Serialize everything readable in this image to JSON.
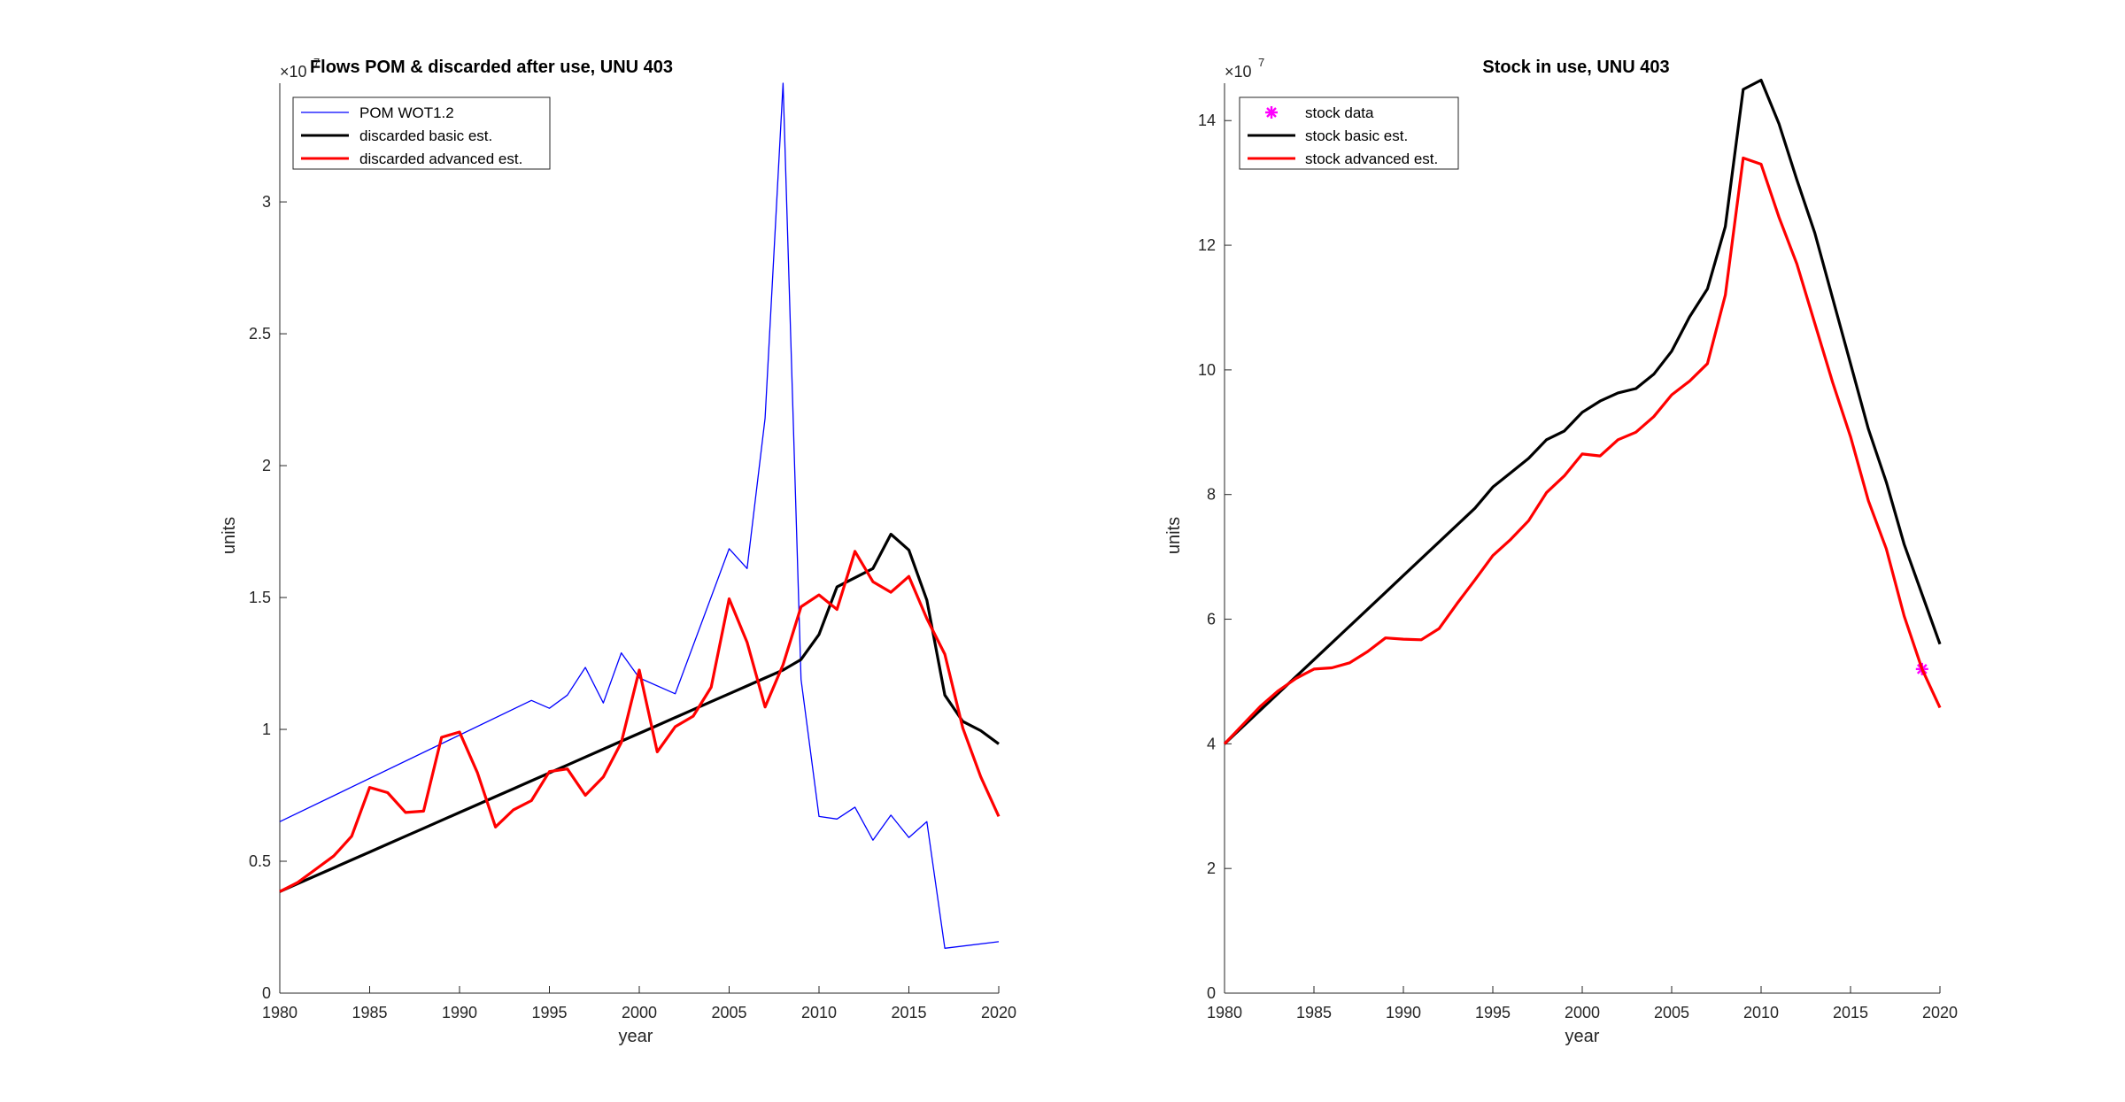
{
  "chart_data": [
    {
      "type": "line",
      "title": "Flows POM & discarded after use, UNU 403",
      "xlabel": "year",
      "ylabel": "units",
      "exponent_label": "×10",
      "exponent_power": "7",
      "xlim": [
        1980,
        2020
      ],
      "ylim": [
        0,
        34.5
      ],
      "xticks": [
        "1980",
        "1985",
        "1990",
        "1995",
        "2000",
        "2005",
        "2010",
        "2015",
        "2020"
      ],
      "yticks": [
        "0",
        "0.5",
        "1",
        "1.5",
        "2",
        "2.5",
        "3"
      ],
      "ytick_values": [
        0,
        5,
        10,
        15,
        20,
        25,
        30
      ],
      "grid": false,
      "legend_position": "top-left",
      "series": [
        {
          "name": "POM WOT1.2",
          "color": "#0000ff",
          "line_width": "thin",
          "x": [
            1980,
            1994,
            1995,
            1996,
            1997,
            1998,
            1999,
            2000,
            2002,
            2005,
            2006,
            2007,
            2008,
            2009,
            2010,
            2011,
            2012,
            2013,
            2014,
            2015,
            2016,
            2017,
            2020
          ],
          "values": [
            6.5,
            11.1,
            10.8,
            11.3,
            12.35,
            11.0,
            12.9,
            11.95,
            11.35,
            16.85,
            16.1,
            21.8,
            34.5,
            11.9,
            6.7,
            6.6,
            7.05,
            5.8,
            6.75,
            5.9,
            6.5,
            1.7,
            1.95
          ]
        },
        {
          "name": "discarded basic est.",
          "color": "#000000",
          "line_width": "thick",
          "x": [
            1980,
            1981,
            1982,
            1983,
            1984,
            1985,
            1986,
            1987,
            1988,
            1989,
            1990,
            1991,
            1992,
            1993,
            1994,
            1995,
            1996,
            1997,
            1998,
            1999,
            2000,
            2001,
            2002,
            2003,
            2004,
            2005,
            2006,
            2007,
            2008,
            2009,
            2010,
            2011,
            2012,
            2013,
            2014,
            2015,
            2016,
            2017,
            2018,
            2019,
            2020
          ],
          "values": [
            3.85,
            4.15,
            4.45,
            4.75,
            5.05,
            5.35,
            5.65,
            5.95,
            6.25,
            6.55,
            6.85,
            7.15,
            7.45,
            7.75,
            8.05,
            8.35,
            8.65,
            8.95,
            9.25,
            9.55,
            9.85,
            10.15,
            10.45,
            10.75,
            11.05,
            11.35,
            11.65,
            11.95,
            12.25,
            12.65,
            13.6,
            15.4,
            15.75,
            16.1,
            17.4,
            16.8,
            14.9,
            11.3,
            10.3,
            9.95,
            9.45
          ]
        },
        {
          "name": "discarded advanced est.",
          "color": "#ff0000",
          "line_width": "thick",
          "x": [
            1980,
            1981,
            1982,
            1983,
            1984,
            1985,
            1986,
            1987,
            1988,
            1989,
            1990,
            1991,
            1992,
            1993,
            1994,
            1995,
            1996,
            1997,
            1998,
            1999,
            2000,
            2001,
            2002,
            2003,
            2004,
            2005,
            2006,
            2007,
            2008,
            2009,
            2010,
            2011,
            2012,
            2013,
            2014,
            2015,
            2016,
            2017,
            2018,
            2019,
            2020
          ],
          "values": [
            3.85,
            4.2,
            4.7,
            5.2,
            5.95,
            7.8,
            7.6,
            6.85,
            6.9,
            9.7,
            9.9,
            8.35,
            6.3,
            6.95,
            7.3,
            8.4,
            8.5,
            7.5,
            8.2,
            9.5,
            12.25,
            9.15,
            10.1,
            10.5,
            11.6,
            14.95,
            13.3,
            10.85,
            12.45,
            14.65,
            15.1,
            14.55,
            16.75,
            15.6,
            15.2,
            15.8,
            14.2,
            12.85,
            10.05,
            8.2,
            6.7
          ]
        }
      ]
    },
    {
      "type": "line",
      "title": "Stock in use, UNU 403",
      "xlabel": "year",
      "ylabel": "units",
      "exponent_label": "×10",
      "exponent_power": "7",
      "xlim": [
        1980,
        2020
      ],
      "ylim": [
        0,
        14.6
      ],
      "xticks": [
        "1980",
        "1985",
        "1990",
        "1995",
        "2000",
        "2005",
        "2010",
        "2015",
        "2020"
      ],
      "yticks": [
        "0",
        "2",
        "4",
        "6",
        "8",
        "10",
        "12",
        "14"
      ],
      "ytick_values": [
        0,
        2,
        4,
        6,
        8,
        10,
        12,
        14
      ],
      "grid": false,
      "legend_position": "top-left",
      "series": [
        {
          "name": "stock data",
          "color": "#ff00ff",
          "marker": "asterisk",
          "x": [
            2019
          ],
          "values": [
            5.2
          ]
        },
        {
          "name": "stock basic est.",
          "color": "#000000",
          "line_width": "thick",
          "x": [
            1980,
            1981,
            1982,
            1983,
            1984,
            1985,
            1986,
            1987,
            1988,
            1989,
            1990,
            1991,
            1992,
            1993,
            1994,
            1995,
            1996,
            1997,
            1998,
            1999,
            2000,
            2001,
            2002,
            2003,
            2004,
            2005,
            2006,
            2007,
            2008,
            2009,
            2010,
            2011,
            2012,
            2013,
            2014,
            2015,
            2016,
            2017,
            2018,
            2019,
            2020
          ],
          "values": [
            4.0,
            4.27,
            4.54,
            4.81,
            5.08,
            5.35,
            5.62,
            5.89,
            6.16,
            6.43,
            6.7,
            6.97,
            7.24,
            7.51,
            7.78,
            8.12,
            8.35,
            8.58,
            8.88,
            9.02,
            9.32,
            9.5,
            9.63,
            9.7,
            9.93,
            10.3,
            10.85,
            11.3,
            12.3,
            14.5,
            14.65,
            13.95,
            13.05,
            12.2,
            11.15,
            10.1,
            9.05,
            8.2,
            7.2,
            6.4,
            5.6
          ]
        },
        {
          "name": "stock advanced est.",
          "color": "#ff0000",
          "line_width": "thick",
          "x": [
            1980,
            1981,
            1982,
            1983,
            1984,
            1985,
            1986,
            1987,
            1988,
            1989,
            1990,
            1991,
            1992,
            1993,
            1994,
            1995,
            1996,
            1997,
            1998,
            1999,
            2000,
            2001,
            2002,
            2003,
            2004,
            2005,
            2006,
            2007,
            2008,
            2009,
            2010,
            2011,
            2012,
            2013,
            2014,
            2015,
            2016,
            2017,
            2018,
            2019,
            2020
          ],
          "values": [
            4.0,
            4.3,
            4.6,
            4.85,
            5.05,
            5.2,
            5.22,
            5.3,
            5.48,
            5.7,
            5.68,
            5.67,
            5.85,
            6.25,
            6.63,
            7.02,
            7.28,
            7.58,
            8.03,
            8.3,
            8.65,
            8.62,
            8.88,
            9.0,
            9.25,
            9.6,
            9.82,
            10.1,
            11.2,
            13.4,
            13.3,
            12.45,
            11.7,
            10.75,
            9.8,
            8.93,
            7.9,
            7.13,
            6.05,
            5.2,
            4.58
          ]
        }
      ]
    }
  ]
}
